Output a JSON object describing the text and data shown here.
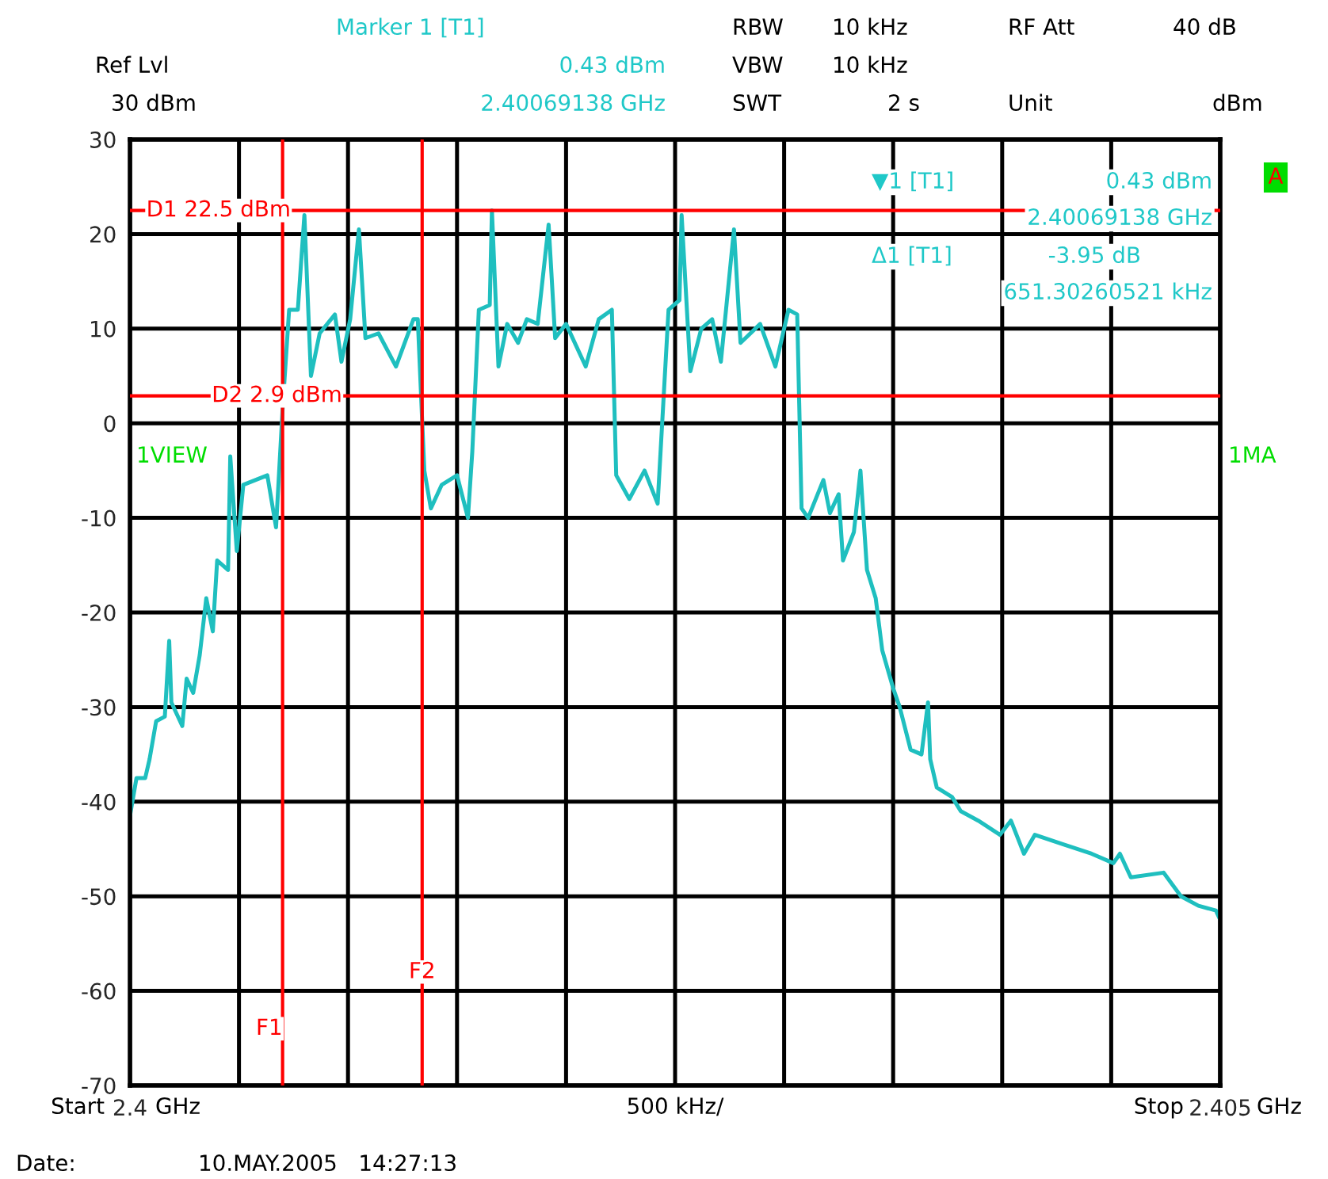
{
  "chart_data": {
    "type": "line",
    "x": [
      2.4,
      2.40003,
      2.40007,
      2.40009,
      2.40012,
      2.40016,
      2.40018,
      2.40019,
      2.40024,
      2.40026,
      2.40029,
      2.40032,
      2.40035,
      2.40038,
      2.4004,
      2.40045,
      2.40046,
      2.40049,
      2.40052,
      2.40063,
      2.40067,
      2.4007,
      2.40073,
      2.40077,
      2.4008,
      2.40083,
      2.40087,
      2.40094,
      2.40097,
      2.40101,
      2.40105,
      2.40108,
      2.40114,
      2.40122,
      2.4013,
      2.40132,
      2.40135,
      2.40138,
      2.40143,
      2.4015,
      2.40155,
      2.40157,
      2.4016,
      2.40165,
      2.40166,
      2.40169,
      2.40173,
      2.40178,
      2.40182,
      2.40187,
      2.40192,
      2.40195,
      2.402,
      2.40209,
      2.40215,
      2.40221,
      2.40223,
      2.40229,
      2.40236,
      2.40242,
      2.40247,
      2.40252,
      2.40253,
      2.40257,
      2.40262,
      2.40267,
      2.40271,
      2.40277,
      2.4028,
      2.40289,
      2.40296,
      2.40302,
      2.40306,
      2.40308,
      2.40311,
      2.40318,
      2.40321,
      2.40325,
      2.40327,
      2.40332,
      2.40335,
      2.40338,
      2.40342,
      2.40345,
      2.4035,
      2.40353,
      2.40358,
      2.40363,
      2.40366,
      2.40367,
      2.4037,
      2.40377,
      2.40381,
      2.40389,
      2.40399,
      2.40404,
      2.4041,
      2.40415,
      2.40428,
      2.40441,
      2.40451,
      2.40454,
      2.40459,
      2.40474,
      2.40482,
      2.4049,
      2.40498,
      2.405
    ],
    "series": [
      {
        "color": "#1fbfbf",
        "values": [
          -41.5,
          -37.5,
          -37.5,
          -35.5,
          -31.5,
          -31,
          -23,
          -29.5,
          -32,
          -27,
          -28.5,
          -24.5,
          -18.5,
          -22,
          -14.5,
          -15.5,
          -3.5,
          -13.5,
          -6.5,
          -5.5,
          -11,
          1.5,
          12,
          12,
          22,
          5,
          9.5,
          11.5,
          6.5,
          11,
          20.5,
          9,
          9.5,
          6,
          11,
          11,
          -5,
          -9,
          -6.5,
          -5.5,
          -10,
          -3,
          12,
          12.5,
          22.5,
          6,
          10.5,
          8.5,
          11,
          10.5,
          21,
          9,
          10.5,
          6,
          11,
          12,
          -5.5,
          -8,
          -5,
          -8.5,
          12,
          13,
          22,
          5.5,
          10,
          11,
          6.5,
          20.5,
          8.5,
          10.5,
          6,
          12,
          11.5,
          -9,
          -10,
          -6,
          -9.5,
          -7.5,
          -14.5,
          -11.5,
          -5,
          -15.5,
          -18.5,
          -24,
          -28,
          -30,
          -34.5,
          -35,
          -29.5,
          -35.5,
          -38.5,
          -39.5,
          -41,
          -42,
          -43.5,
          -42,
          -45.5,
          -43.5,
          -44.5,
          -45.5,
          -46.5,
          -45.5,
          -48,
          -47.5,
          -50,
          -51,
          -51.5,
          -52.5
        ]
      }
    ],
    "xlim": [
      2.4,
      2.405
    ],
    "xticks": [
      {
        "value": 2.4,
        "label": "2.4"
      },
      {
        "value": 2.4005,
        "label": null
      },
      {
        "value": 2.401,
        "label": null
      },
      {
        "value": 2.4015,
        "label": null
      },
      {
        "value": 2.402,
        "label": null
      },
      {
        "value": 2.4025,
        "label": null
      },
      {
        "value": 2.403,
        "label": null
      },
      {
        "value": 2.4035,
        "label": null
      },
      {
        "value": 2.404,
        "label": null
      },
      {
        "value": 2.4045,
        "label": null
      },
      {
        "value": 2.405,
        "label": "2.405"
      }
    ],
    "ylim": [
      -70,
      30
    ],
    "yticks": [
      -70,
      -60,
      -50,
      -40,
      -30,
      -20,
      -10,
      0,
      10,
      20,
      30
    ],
    "grid": true,
    "ref_lines": [
      {
        "axis": "y",
        "value": 22.5,
        "label": "D1 22.5 dBm",
        "color": "#ff0000"
      },
      {
        "axis": "y",
        "value": 2.9,
        "label": "D2 2.9 dBm",
        "color": "#ff0000"
      },
      {
        "axis": "x",
        "value": 2.4007,
        "label": "F1",
        "color": "#ff0000"
      },
      {
        "axis": "x",
        "value": 2.40134,
        "label": "F2",
        "color": "#ff0000"
      }
    ],
    "annotations": [
      "Marker 1 [T1]",
      "Ref Lvl",
      "0.43 dBm",
      "30 dBm",
      "2.40069138 GHz",
      "RBW",
      "10 kHz",
      "RF Att",
      "40 dB",
      "VBW",
      "10 kHz",
      "SWT",
      "2 s",
      "Unit",
      "dBm",
      "▼1 [T1]",
      "0.43 dBm",
      "2.40069138 GHz",
      "Δ1 [T1]",
      "-3.95 dB",
      "651.30260521 kHz",
      "A",
      "1VIEW",
      "1MA",
      "Date:",
      "10.MAY.2005   14:27:13",
      "500 kHz/",
      "Start",
      "GHz",
      "Stop",
      "GHz"
    ]
  }
}
